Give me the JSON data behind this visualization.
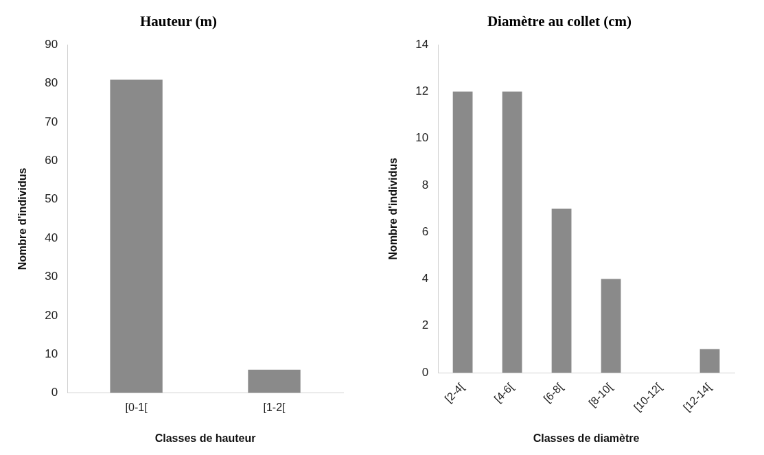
{
  "chart_data": [
    {
      "type": "bar",
      "title": "Hauteur (m)",
      "xlabel": "Classes de hauteur",
      "ylabel": "Nombre d'individus",
      "categories": [
        "[0-1[",
        "[1-2["
      ],
      "values": [
        81,
        6
      ],
      "color": "#8a8a8a",
      "ylim": [
        0,
        90
      ],
      "yticks": [
        0,
        10,
        20,
        30,
        40,
        50,
        60,
        70,
        80,
        90
      ],
      "grid": false,
      "legend": false
    },
    {
      "type": "bar",
      "title": "Diamètre au collet (cm)",
      "xlabel": "Classes de diamètre",
      "ylabel": "Nombre d'individus",
      "categories": [
        "[2-4[",
        "[4-6[",
        "[6-8[",
        "[8-10[",
        "[10-12[",
        "[12-14["
      ],
      "values": [
        12,
        12,
        7,
        4,
        0,
        1
      ],
      "color": "#8a8a8a",
      "ylim": [
        0,
        14
      ],
      "yticks": [
        0,
        2,
        4,
        6,
        8,
        10,
        12,
        14
      ],
      "grid": false,
      "legend": false
    }
  ]
}
